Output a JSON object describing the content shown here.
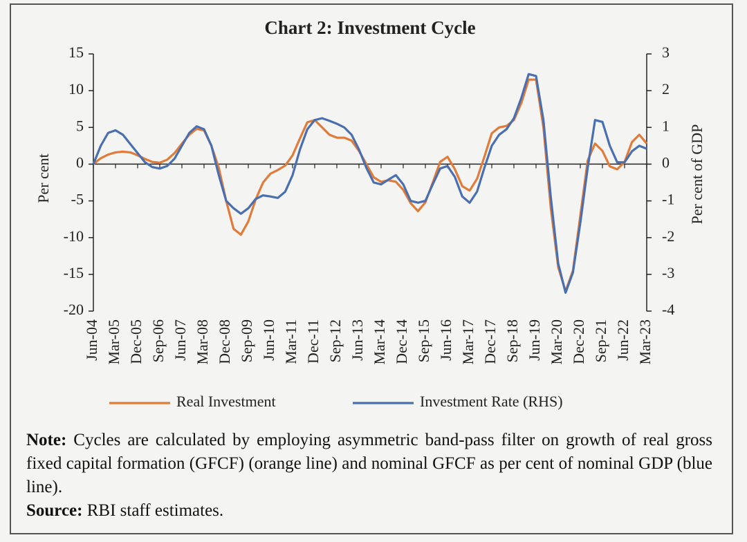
{
  "chart_data": {
    "type": "line",
    "title": "Chart 2: Investment Cycle",
    "y_label": "Per cent",
    "y2_label": "Per cent of GDP",
    "categories": [
      "Jun-04",
      null,
      null,
      "Mar-05",
      null,
      null,
      "Dec-05",
      null,
      null,
      "Sep-06",
      null,
      null,
      "Jun-07",
      null,
      null,
      "Mar-08",
      null,
      null,
      "Dec-08",
      null,
      null,
      "Sep-09",
      null,
      null,
      "Jun-10",
      null,
      null,
      "Mar-11",
      null,
      null,
      "Dec-11",
      null,
      null,
      "Sep-12",
      null,
      null,
      "Jun-13",
      null,
      null,
      "Mar-14",
      null,
      null,
      "Dec-14",
      null,
      null,
      "Sep-15",
      null,
      null,
      "Jun-16",
      null,
      null,
      "Mar-17",
      null,
      null,
      "Dec-17",
      null,
      null,
      "Sep-18",
      null,
      null,
      "Jun-19",
      null,
      null,
      "Mar-20",
      null,
      null,
      "Dec-20",
      null,
      null,
      "Sep-21",
      null,
      null,
      "Jun-22",
      null,
      null,
      "Mar-23"
    ],
    "series": [
      {
        "name": "Real Investment",
        "color": "#e07b39",
        "axis": "y",
        "values": [
          0,
          0.8,
          1.3,
          1.6,
          1.7,
          1.6,
          1.2,
          0.7,
          0.3,
          0.2,
          0.6,
          1.5,
          2.8,
          4.0,
          4.8,
          4.6,
          2.5,
          -0.5,
          -5,
          -8.8,
          -9.6,
          -7.8,
          -4.8,
          -2.5,
          -1.3,
          -0.8,
          -0.2,
          1.2,
          3.5,
          5.7,
          6.0,
          5.0,
          4.0,
          3.6,
          3.6,
          3.2,
          1.8,
          0,
          -1.8,
          -2.4,
          -2.2,
          -2.4,
          -3.5,
          -5.3,
          -6.4,
          -5.2,
          -2.5,
          0.3,
          1.0,
          -0.7,
          -3.0,
          -3.6,
          -2.0,
          1.0,
          4.2,
          5.0,
          5.2,
          6.0,
          8.3,
          11.5,
          11.5,
          5.0,
          -6.0,
          -14,
          -17.3,
          -14.5,
          -7,
          0.5,
          2.8,
          1.8,
          -0.3,
          -0.7,
          0.3,
          3.0,
          4.0,
          2.8
        ]
      },
      {
        "name": "Investment Rate (RHS)",
        "color": "#4a6fb0",
        "axis": "y2",
        "values": [
          0,
          0.5,
          0.85,
          0.92,
          0.8,
          0.55,
          0.3,
          0.05,
          -0.08,
          -0.12,
          -0.05,
          0.15,
          0.5,
          0.85,
          1.03,
          0.95,
          0.5,
          -0.3,
          -1.0,
          -1.2,
          -1.35,
          -1.2,
          -0.95,
          -0.85,
          -0.88,
          -0.92,
          -0.75,
          -0.3,
          0.4,
          0.95,
          1.2,
          1.25,
          1.18,
          1.1,
          1.0,
          0.8,
          0.4,
          -0.1,
          -0.5,
          -0.55,
          -0.42,
          -0.3,
          -0.55,
          -1.0,
          -1.05,
          -1.0,
          -0.55,
          -0.12,
          -0.05,
          -0.35,
          -0.88,
          -1.05,
          -0.75,
          -0.1,
          0.5,
          0.8,
          0.95,
          1.25,
          1.8,
          2.45,
          2.4,
          1.2,
          -0.9,
          -2.7,
          -3.5,
          -2.95,
          -1.6,
          -0.1,
          1.2,
          1.15,
          0.5,
          0.05,
          0.05,
          0.35,
          0.5,
          0.42
        ]
      }
    ],
    "ylim": [
      -20,
      15
    ],
    "yticks": [
      15,
      10,
      5,
      0,
      -5,
      -10,
      -15,
      -20
    ],
    "y2lim": [
      -4,
      3
    ],
    "y2ticks": [
      3,
      2,
      1,
      0,
      -1,
      -2,
      -3,
      -4
    ],
    "legend": "bottom"
  },
  "note": {
    "label": "Note:",
    "text": "Cycles are calculated by employing asymmetric band-pass filter on growth of real gross fixed capital formation (GFCF) (orange line) and nominal GFCF as per cent of nominal GDP (blue line)."
  },
  "source": {
    "label": "Source:",
    "text": "RBI staff estimates."
  }
}
